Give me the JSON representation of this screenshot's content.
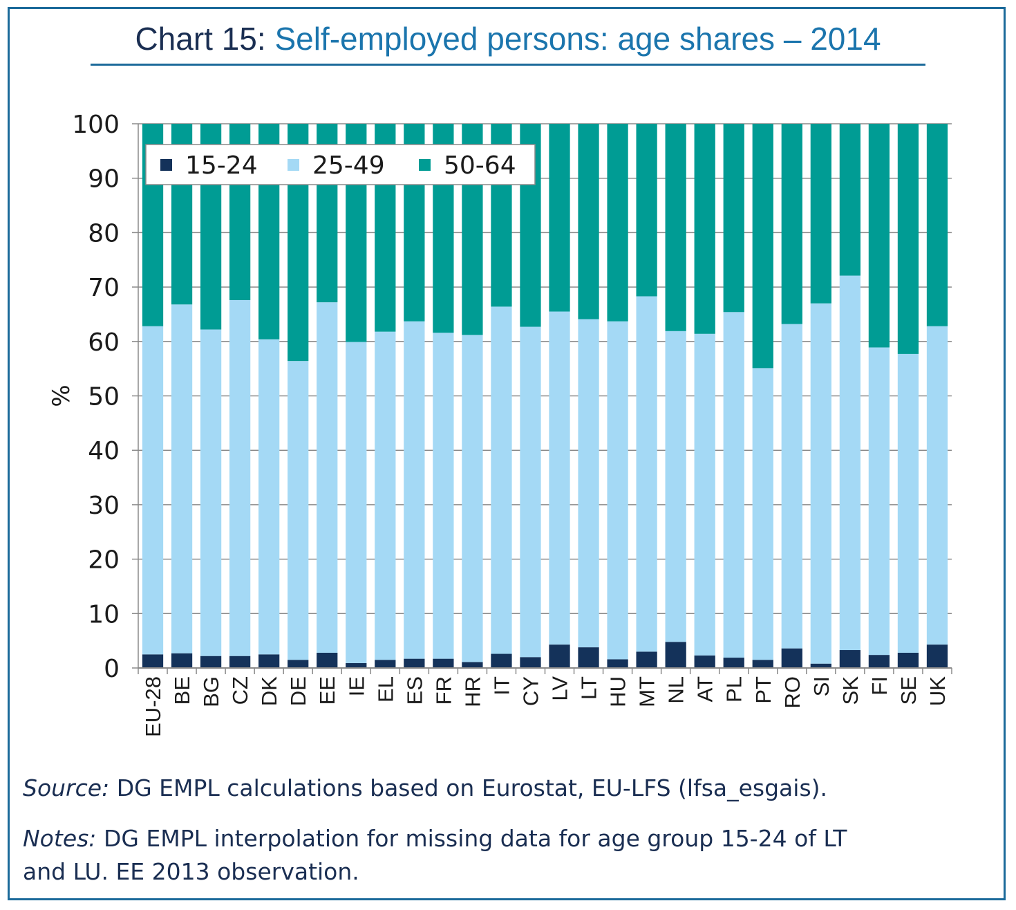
{
  "title": {
    "prefix": "Chart 15:",
    "main": "Self-employed persons: age shares – 2014"
  },
  "source": {
    "label": "Source:",
    "text": "DG EMPL calculations based on Eurostat, EU-LFS (lfsa_esgais)."
  },
  "notes": {
    "label": "Notes:",
    "line1": "DG EMPL interpolation for missing data for age group 15-24 of LT",
    "line2": "and LU. EE 2013 observation."
  },
  "colors": {
    "s1524": "#14325a",
    "s2549": "#a4d9f5",
    "s5064": "#009c94",
    "frame": "#1b6a9a"
  },
  "chart_data": {
    "type": "bar",
    "stacked": true,
    "title": "",
    "xlabel": "",
    "ylabel": "%",
    "ylim": [
      0,
      100
    ],
    "yticks": [
      0,
      10,
      20,
      30,
      40,
      50,
      60,
      70,
      80,
      90,
      100
    ],
    "grid": true,
    "legend": "top-left",
    "categories": [
      "EU-28",
      "BE",
      "BG",
      "CZ",
      "DK",
      "DE",
      "EE",
      "IE",
      "EL",
      "ES",
      "FR",
      "HR",
      "IT",
      "CY",
      "LV",
      "LT",
      "HU",
      "MT",
      "NL",
      "AT",
      "PL",
      "PT",
      "RO",
      "SI",
      "SK",
      "FI",
      "SE",
      "UK"
    ],
    "series": [
      {
        "name": "15-24",
        "values": [
          2.5,
          2.7,
          2.2,
          2.2,
          2.5,
          1.5,
          2.8,
          0.9,
          1.5,
          1.7,
          1.7,
          1.1,
          2.6,
          2.0,
          4.3,
          3.8,
          1.6,
          3.0,
          4.8,
          2.3,
          1.9,
          1.5,
          3.6,
          0.8,
          3.3,
          2.4,
          2.8,
          4.3
        ]
      },
      {
        "name": "25-49",
        "values": [
          60.3,
          64.1,
          60.0,
          65.4,
          57.9,
          54.9,
          64.4,
          59.0,
          60.3,
          62.0,
          59.9,
          60.1,
          63.8,
          60.7,
          61.2,
          60.3,
          62.1,
          65.3,
          57.1,
          59.1,
          63.5,
          53.6,
          59.6,
          66.2,
          68.8,
          56.5,
          54.9,
          58.5
        ]
      },
      {
        "name": "50-64",
        "values": [
          37.2,
          33.2,
          37.8,
          32.4,
          39.6,
          43.6,
          32.8,
          40.1,
          38.2,
          36.3,
          38.4,
          38.8,
          33.6,
          37.3,
          34.5,
          35.9,
          36.3,
          31.7,
          38.1,
          38.6,
          34.6,
          44.9,
          36.8,
          33.0,
          27.9,
          41.1,
          42.3,
          37.2
        ]
      }
    ]
  }
}
